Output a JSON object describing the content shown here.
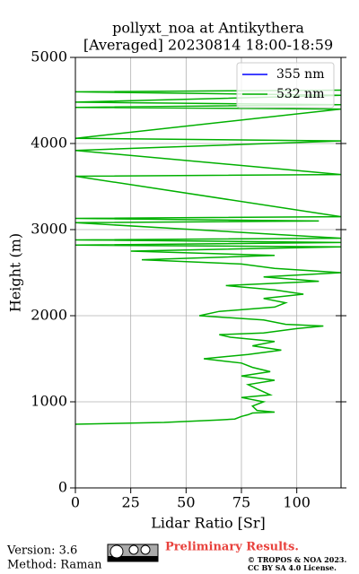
{
  "chart_data": {
    "type": "line",
    "title": "pollyxt_noa at Antikythera",
    "subtitle": "[Averaged] 20230814 18:00-18:59",
    "x_label": "Lidar Ratio [Sr]",
    "y_label": "Height (m)",
    "heights": [
      740,
      760,
      790,
      800,
      830,
      850,
      870,
      880,
      900,
      950,
      1000,
      1050,
      1080,
      1150,
      1200,
      1250,
      1300,
      1350,
      1400,
      1450,
      1500,
      1550,
      1600,
      1650,
      1700,
      1750,
      1780,
      1800,
      1850,
      1880,
      1900,
      1950,
      2000,
      2050,
      2100,
      2150,
      2200,
      2250,
      2300,
      2350,
      2400,
      2450,
      2500,
      2550,
      2600,
      2650,
      2700,
      2750,
      2800,
      2820,
      2850,
      2880,
      2900,
      3080,
      3100,
      3130,
      3150,
      3620,
      3640,
      3920,
      4030,
      4060,
      4400,
      4420,
      4450,
      4480,
      4560,
      4600,
      4620
    ],
    "series": [
      {
        "name": "355 nm",
        "color": "#0000ff",
        "values": [
          null,
          null,
          null,
          null,
          null,
          null,
          null,
          null,
          null,
          null,
          null,
          null,
          null,
          null,
          null,
          null,
          null,
          null,
          null,
          null,
          null,
          null,
          null,
          null,
          null,
          null,
          null,
          null,
          null,
          null,
          null,
          null,
          null,
          null,
          null,
          null,
          null,
          null,
          null,
          null,
          null,
          null,
          null,
          null,
          null,
          null,
          null,
          null,
          null,
          null,
          null,
          null,
          null,
          null,
          null,
          null,
          null,
          null,
          null,
          null,
          null,
          null,
          null,
          null,
          null,
          null,
          null,
          null,
          null
        ]
      },
      {
        "name": "532 nm",
        "color": "#00b000",
        "values": [
          0,
          40,
          65,
          72,
          75,
          78,
          80,
          90,
          82,
          80,
          85,
          75,
          88,
          82,
          78,
          90,
          75,
          88,
          80,
          75,
          58,
          78,
          93,
          80,
          90,
          70,
          65,
          85,
          100,
          112,
          95,
          85,
          56,
          65,
          90,
          95,
          85,
          103,
          90,
          68,
          110,
          85,
          120,
          90,
          75,
          30,
          90,
          25,
          120,
          0,
          120,
          0,
          120,
          0,
          110,
          0,
          120,
          0,
          120,
          0,
          120,
          0,
          120,
          0,
          120,
          0,
          120,
          0,
          120
        ]
      }
    ],
    "xlim": [
      0,
      120
    ],
    "xticks": [
      0,
      25,
      50,
      75,
      100
    ],
    "ylim": [
      0,
      5000
    ],
    "yticks": [
      0,
      1000,
      2000,
      3000,
      4000,
      5000
    ],
    "grid": true,
    "legend": "upper right",
    "footer": {
      "version": "Version: 3.6",
      "method": "Method: Raman",
      "status": "Preliminary Results.",
      "copyright": "© TROPOS & NOA 2023.",
      "license": "CC BY SA 4.0 License."
    }
  }
}
